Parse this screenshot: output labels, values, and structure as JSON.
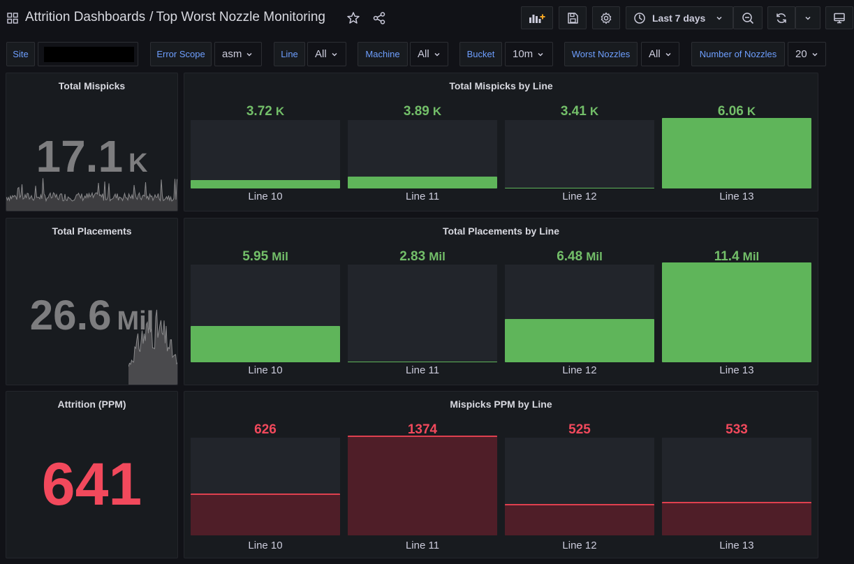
{
  "header": {
    "app": "Attrition Dashboards",
    "separator": "/",
    "title": "Top Worst Nozzle Monitoring",
    "time_range": "Last 7 days"
  },
  "variables": [
    {
      "label": "Site",
      "value": ""
    },
    {
      "label": "Error Scope",
      "value": "asm"
    },
    {
      "label": "Line",
      "value": "All"
    },
    {
      "label": "Machine",
      "value": "All"
    },
    {
      "label": "Bucket",
      "value": "10m"
    },
    {
      "label": "Worst Nozzles",
      "value": "All"
    },
    {
      "label": "Number of Nozzles",
      "value": "20"
    }
  ],
  "colors": {
    "green": "#73bf69",
    "green_fill": "#5fb55a",
    "red": "#f2495c",
    "red_fill": "#4f1e28",
    "red_line": "#e0404f",
    "gray_stat": "#7d7d7f"
  },
  "panels": {
    "total_mispicks": {
      "title": "Total Mispicks",
      "value": "17.1",
      "unit": "K"
    },
    "total_placements": {
      "title": "Total Placements",
      "value": "26.6",
      "unit": "Mil"
    },
    "attrition": {
      "title": "Attrition (PPM)",
      "value": "641"
    },
    "mispicks_by_line": {
      "title": "Total Mispicks by Line",
      "items": [
        {
          "label": "Line 10",
          "value": "3.72",
          "unit": "K",
          "fraction": 0.12
        },
        {
          "label": "Line 11",
          "value": "3.89",
          "unit": "K",
          "fraction": 0.17
        },
        {
          "label": "Line 12",
          "value": "3.41",
          "unit": "K",
          "fraction": 0.015
        },
        {
          "label": "Line 13",
          "value": "6.06",
          "unit": "K",
          "fraction": 1.0
        }
      ]
    },
    "placements_by_line": {
      "title": "Total Placements by Line",
      "items": [
        {
          "label": "Line 10",
          "value": "5.95",
          "unit": "Mil",
          "fraction": 0.37
        },
        {
          "label": "Line 11",
          "value": "2.83",
          "unit": "Mil",
          "fraction": 0.01
        },
        {
          "label": "Line 12",
          "value": "6.48",
          "unit": "Mil",
          "fraction": 0.44
        },
        {
          "label": "Line 13",
          "value": "11.4",
          "unit": "Mil",
          "fraction": 1.0
        }
      ]
    },
    "ppm_by_line": {
      "title": "Mispicks PPM by Line",
      "items": [
        {
          "label": "Line 10",
          "value": "626",
          "unit": "",
          "fraction": 0.43
        },
        {
          "label": "Line 11",
          "value": "1374",
          "unit": "",
          "fraction": 1.0
        },
        {
          "label": "Line 12",
          "value": "525",
          "unit": "",
          "fraction": 0.32
        },
        {
          "label": "Line 13",
          "value": "533",
          "unit": "",
          "fraction": 0.34
        }
      ]
    }
  }
}
